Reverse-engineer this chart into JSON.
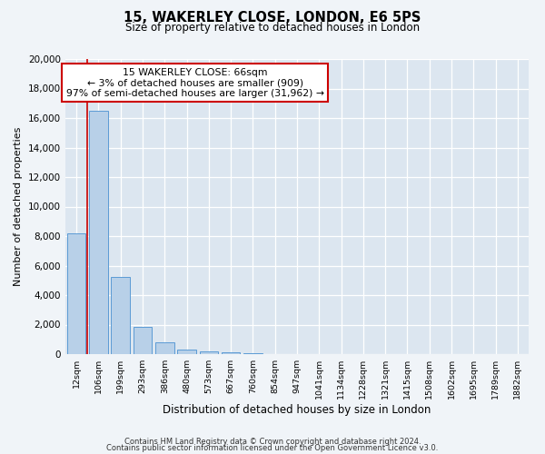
{
  "title": "15, WAKERLEY CLOSE, LONDON, E6 5PS",
  "subtitle": "Size of property relative to detached houses in London",
  "xlabel": "Distribution of detached houses by size in London",
  "ylabel": "Number of detached properties",
  "bar_labels": [
    "12sqm",
    "106sqm",
    "199sqm",
    "293sqm",
    "386sqm",
    "480sqm",
    "573sqm",
    "667sqm",
    "760sqm",
    "854sqm",
    "947sqm",
    "1041sqm",
    "1134sqm",
    "1228sqm",
    "1321sqm",
    "1415sqm",
    "1508sqm",
    "1602sqm",
    "1695sqm",
    "1789sqm",
    "1882sqm"
  ],
  "bar_values": [
    8200,
    16500,
    5250,
    1850,
    800,
    280,
    180,
    100,
    60,
    30,
    0,
    0,
    0,
    0,
    0,
    0,
    0,
    0,
    0,
    0,
    0
  ],
  "bar_color": "#b8d0e8",
  "bar_edge_color": "#5b9bd5",
  "bg_color": "#dce6f0",
  "grid_color": "#ffffff",
  "fig_bg_color": "#f0f4f8",
  "ylim": [
    0,
    20000
  ],
  "yticks": [
    0,
    2000,
    4000,
    6000,
    8000,
    10000,
    12000,
    14000,
    16000,
    18000,
    20000
  ],
  "marker_color": "#cc0000",
  "annotation_title": "15 WAKERLEY CLOSE: 66sqm",
  "annotation_line2": "← 3% of detached houses are smaller (909)",
  "annotation_line3": "97% of semi-detached houses are larger (31,962) →",
  "footer1": "Contains HM Land Registry data © Crown copyright and database right 2024.",
  "footer2": "Contains public sector information licensed under the Open Government Licence v3.0."
}
